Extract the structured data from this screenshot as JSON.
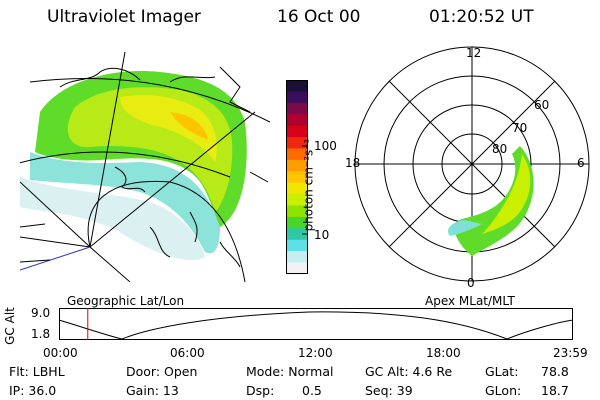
{
  "header": {
    "instrument": "Ultraviolet Imager",
    "date": "16 Oct 00",
    "time": "01:20:52 UT"
  },
  "colorbar": {
    "unit_label": "photon cm⁻²s⁻¹",
    "ticks": [
      "100",
      "10"
    ],
    "colors": [
      "#1b0f36",
      "#3a0e5a",
      "#7a0a4a",
      "#b00030",
      "#d80018",
      "#f02810",
      "#ff6a00",
      "#ff9d00",
      "#ffc400",
      "#f0e600",
      "#c8f000",
      "#8ee200",
      "#46d62a",
      "#2ec8a8",
      "#5ee0e6",
      "#c6eef0",
      "#f2f2f2"
    ]
  },
  "left_panel": {
    "caption": "Geographic Lat/Lon"
  },
  "right_panel": {
    "caption": "Apex MLat/MLT",
    "mlt_labels": {
      "top": "12",
      "left": "18",
      "right": "6",
      "bottom": "0"
    },
    "mlat_labels": [
      "60",
      "70",
      "80"
    ]
  },
  "altitude_strip": {
    "axis_label": "GC Alt",
    "y_ticks": [
      "9.0",
      "1.8"
    ],
    "x_ticks": [
      "00:00",
      "06:00",
      "12:00",
      "18:00",
      "23:59"
    ],
    "marker_time_fraction": 0.056,
    "marker_color": "#e00000"
  },
  "info": {
    "row1": {
      "filter": "Flt: LBHL",
      "door": "Door: Open",
      "mode": "Mode: Normal",
      "gc_alt": "GC Alt: 4.6 Re",
      "glat_label": "GLat:",
      "glat_value": "78.8"
    },
    "row2": {
      "ip": "IP: 36.0",
      "gain": "Gain: 13",
      "dsp_label": "Dsp:",
      "dsp_value": "0.5",
      "seq": "Seq: 39",
      "glon_label": "GLon:",
      "glon_value": "18.7"
    }
  }
}
